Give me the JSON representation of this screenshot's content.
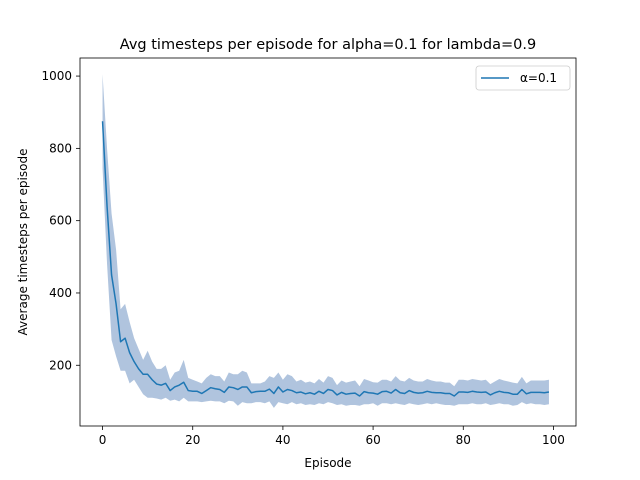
{
  "chart_data": {
    "type": "line",
    "title": "Avg timesteps per episode for alpha=0.1 for lambda=0.9",
    "xlabel": "Episode",
    "ylabel": "Average timesteps per episode",
    "xlim": [
      -5,
      105
    ],
    "ylim": [
      32,
      1050
    ],
    "xticks": [
      0,
      20,
      40,
      60,
      80,
      100
    ],
    "yticks": [
      200,
      400,
      600,
      800,
      1000
    ],
    "grid": false,
    "legend_position": "top-right",
    "series": [
      {
        "name": "α=0.1",
        "color": "#1f77b4",
        "band_color": "#b0c4de",
        "x": [
          0,
          1,
          2,
          3,
          4,
          5,
          6,
          7,
          8,
          9,
          10,
          11,
          12,
          13,
          14,
          15,
          16,
          17,
          18,
          19,
          20,
          21,
          22,
          23,
          24,
          25,
          26,
          27,
          28,
          29,
          30,
          31,
          32,
          33,
          34,
          35,
          36,
          37,
          38,
          39,
          40,
          41,
          42,
          43,
          44,
          45,
          46,
          47,
          48,
          49,
          50,
          51,
          52,
          53,
          54,
          55,
          56,
          57,
          58,
          59,
          60,
          61,
          62,
          63,
          64,
          65,
          66,
          67,
          68,
          69,
          70,
          71,
          72,
          73,
          74,
          75,
          76,
          77,
          78,
          79,
          80,
          81,
          82,
          83,
          84,
          85,
          86,
          87,
          88,
          89,
          90,
          91,
          92,
          93,
          94,
          95,
          96,
          97,
          98,
          99
        ],
        "y": [
          875,
          640,
          450,
          370,
          265,
          275,
          235,
          210,
          190,
          175,
          175,
          160,
          148,
          145,
          150,
          130,
          140,
          145,
          153,
          130,
          128,
          128,
          122,
          130,
          138,
          135,
          133,
          125,
          140,
          138,
          133,
          140,
          140,
          124,
          127,
          128,
          128,
          134,
          122,
          140,
          126,
          133,
          130,
          124,
          126,
          121,
          124,
          120,
          128,
          122,
          133,
          130,
          118,
          125,
          120,
          122,
          123,
          115,
          127,
          124,
          123,
          120,
          127,
          128,
          123,
          133,
          124,
          122,
          130,
          125,
          123,
          124,
          128,
          125,
          124,
          124,
          122,
          122,
          115,
          126,
          126,
          125,
          128,
          126,
          125,
          126,
          118,
          124,
          128,
          125,
          124,
          120,
          120,
          133,
          121,
          125,
          125,
          125,
          124,
          126
        ],
        "lower": [
          745,
          480,
          270,
          225,
          185,
          185,
          150,
          160,
          140,
          120,
          110,
          110,
          108,
          105,
          110,
          102,
          105,
          100,
          110,
          100,
          100,
          100,
          98,
          100,
          102,
          100,
          100,
          95,
          102,
          100,
          88,
          98,
          95,
          95,
          98,
          98,
          95,
          100,
          82,
          98,
          95,
          92,
          98,
          92,
          95,
          90,
          92,
          90,
          95,
          92,
          98,
          95,
          90,
          92,
          88,
          90,
          90,
          88,
          92,
          92,
          95,
          88,
          95,
          95,
          92,
          95,
          92,
          90,
          95,
          92,
          90,
          92,
          95,
          92,
          95,
          92,
          90,
          90,
          88,
          92,
          92,
          92,
          95,
          92,
          92,
          95,
          90,
          92,
          95,
          92,
          92,
          88,
          90,
          98,
          92,
          95,
          92,
          92,
          90,
          92
        ],
        "upper": [
          1005,
          800,
          620,
          520,
          355,
          370,
          320,
          275,
          245,
          215,
          240,
          210,
          190,
          190,
          200,
          160,
          180,
          185,
          215,
          165,
          160,
          155,
          150,
          165,
          175,
          170,
          170,
          155,
          180,
          175,
          175,
          185,
          180,
          150,
          150,
          150,
          155,
          170,
          165,
          180,
          160,
          175,
          170,
          155,
          160,
          152,
          155,
          150,
          162,
          152,
          170,
          165,
          145,
          158,
          152,
          155,
          158,
          142,
          162,
          158,
          153,
          152,
          160,
          160,
          155,
          170,
          158,
          155,
          165,
          158,
          155,
          155,
          162,
          158,
          155,
          155,
          152,
          152,
          142,
          160,
          160,
          158,
          162,
          160,
          158,
          160,
          148,
          155,
          162,
          158,
          155,
          152,
          150,
          168,
          150,
          158,
          158,
          158,
          158,
          160
        ]
      }
    ]
  }
}
